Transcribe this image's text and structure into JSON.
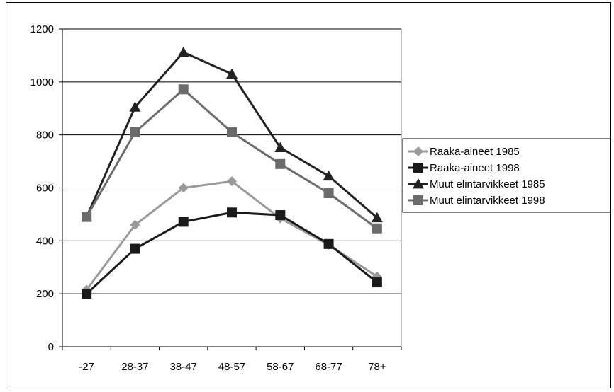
{
  "chart_data": {
    "type": "line",
    "categories": [
      "-27",
      "28-37",
      "38-47",
      "48-57",
      "58-67",
      "68-77",
      "78+"
    ],
    "ylim": [
      0,
      1200
    ],
    "yticks": [
      0,
      200,
      400,
      600,
      800,
      1000,
      1200
    ],
    "grid": true,
    "legend_position": "right",
    "series": [
      {
        "name": "Raaka-aineet 1985",
        "color": "#999999",
        "marker": "diamond",
        "values": [
          215,
          460,
          600,
          625,
          485,
          385,
          265
        ]
      },
      {
        "name": "Raaka-aineet 1998",
        "color": "#1a1a1a",
        "marker": "square",
        "values": [
          200,
          370,
          472,
          507,
          497,
          388,
          243
        ]
      },
      {
        "name": "Muut elintarvikkeet 1985",
        "color": "#222222",
        "marker": "triangle",
        "values": [
          490,
          905,
          1112,
          1030,
          752,
          645,
          487
        ]
      },
      {
        "name": "Muut elintarvikkeet 1998",
        "color": "#6b6b6b",
        "marker": "square",
        "values": [
          490,
          810,
          972,
          810,
          690,
          580,
          447
        ]
      }
    ]
  }
}
